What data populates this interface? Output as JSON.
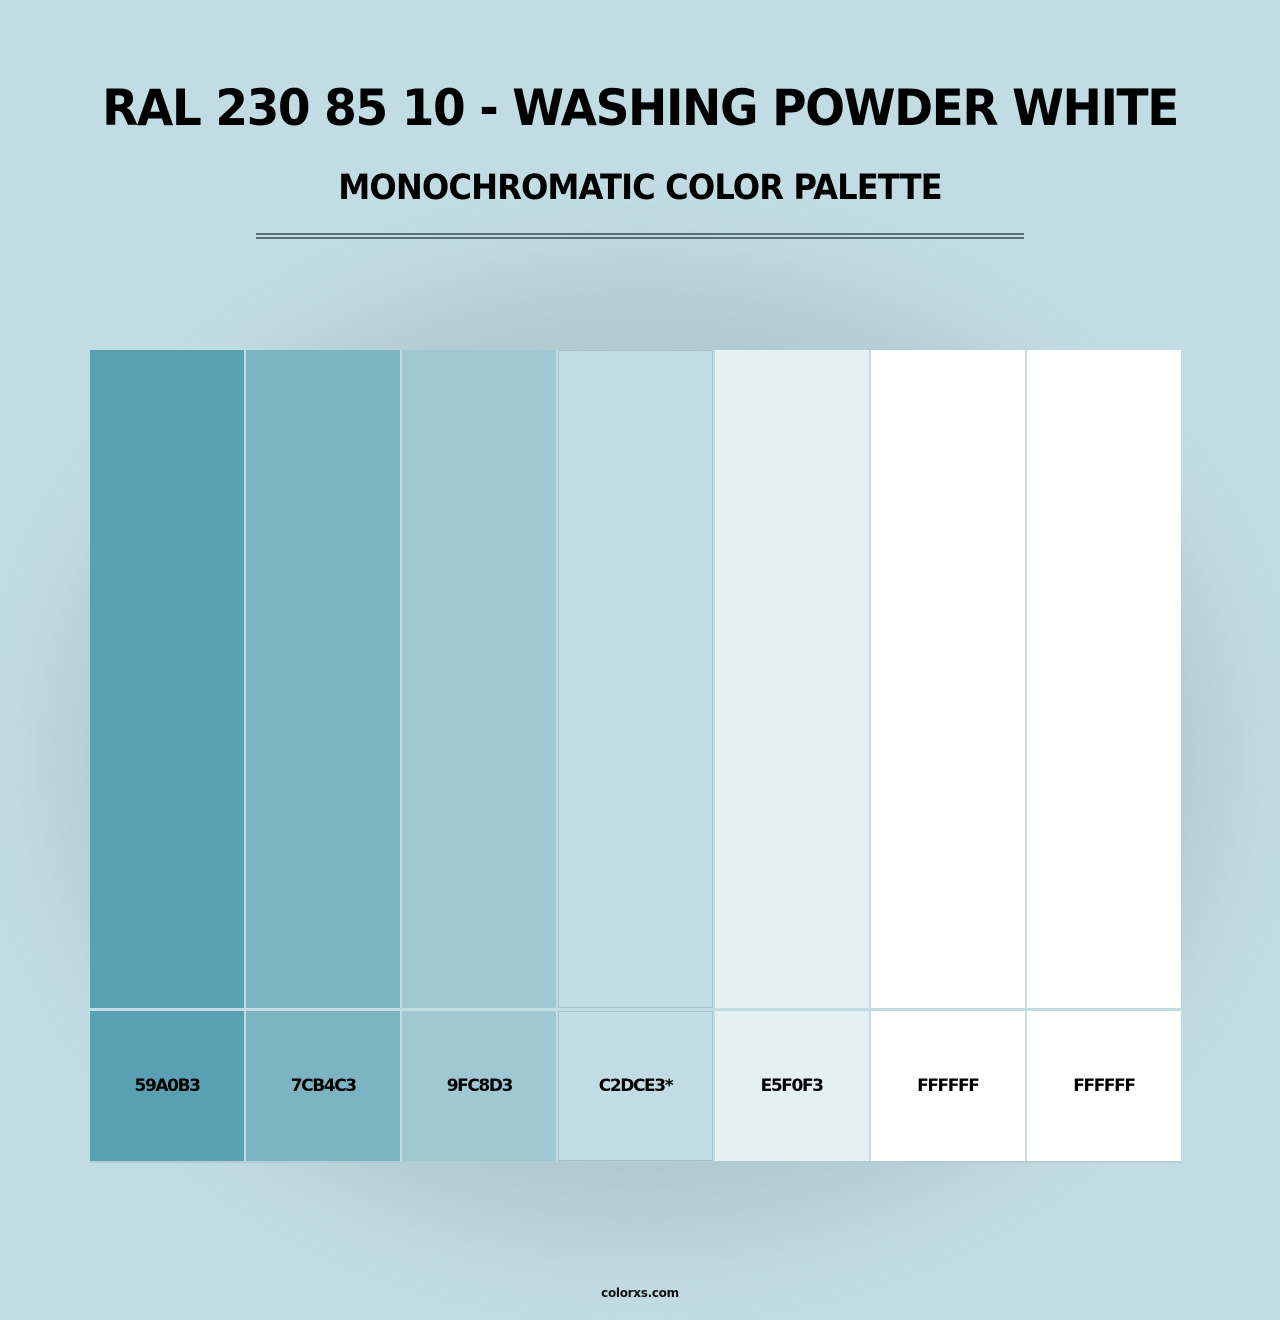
{
  "header": {
    "title": "RAL 230 85 10 - WASHING POWDER WHITE",
    "subtitle": "MONOCHROMATIC COLOR PALETTE"
  },
  "palette": {
    "base_color": "#C2DCE3",
    "swatches": [
      {
        "hex": "#59A0B3",
        "label": "59A0B3",
        "is_base": false
      },
      {
        "hex": "#7CB4C3",
        "label": "7CB4C3",
        "is_base": false
      },
      {
        "hex": "#9FC8D3",
        "label": "9FC8D3",
        "is_base": false
      },
      {
        "hex": "#C2DCE3",
        "label": "C2DCE3*",
        "is_base": true
      },
      {
        "hex": "#E5F0F3",
        "label": "E5F0F3",
        "is_base": false
      },
      {
        "hex": "#FFFFFF",
        "label": "FFFFFF",
        "is_base": false
      },
      {
        "hex": "#FFFFFF",
        "label": "FFFFFF",
        "is_base": false
      }
    ]
  },
  "colors": {
    "background": "#C2DCE3",
    "divider": "#5A6E75",
    "text": "#000000"
  },
  "footer": {
    "site": "colorxs.com"
  }
}
